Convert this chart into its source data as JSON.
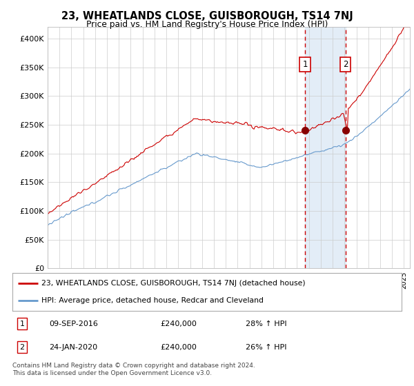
{
  "title": "23, WHEATLANDS CLOSE, GUISBOROUGH, TS14 7NJ",
  "subtitle": "Price paid vs. HM Land Registry's House Price Index (HPI)",
  "ytick_values": [
    0,
    50000,
    100000,
    150000,
    200000,
    250000,
    300000,
    350000,
    400000
  ],
  "ylim": [
    0,
    420000
  ],
  "xlim_start": 1995.0,
  "xlim_end": 2025.5,
  "grid_color": "#cccccc",
  "bg_color": "#ffffff",
  "sale1_date": 2016.69,
  "sale1_price": 240000,
  "sale1_label": "1",
  "sale2_date": 2020.07,
  "sale2_price": 240000,
  "sale2_label": "2",
  "shade_color": "#dce9f5",
  "dashed_color": "#cc0000",
  "legend_label1": "23, WHEATLANDS CLOSE, GUISBOROUGH, TS14 7NJ (detached house)",
  "legend_label2": "HPI: Average price, detached house, Redcar and Cleveland",
  "annotation1_date": "09-SEP-2016",
  "annotation1_price": "£240,000",
  "annotation1_hpi": "28% ↑ HPI",
  "annotation2_date": "24-JAN-2020",
  "annotation2_price": "£240,000",
  "annotation2_hpi": "26% ↑ HPI",
  "footer": "Contains HM Land Registry data © Crown copyright and database right 2024.\nThis data is licensed under the Open Government Licence v3.0.",
  "line_red": "#cc0000",
  "line_blue": "#6699cc"
}
